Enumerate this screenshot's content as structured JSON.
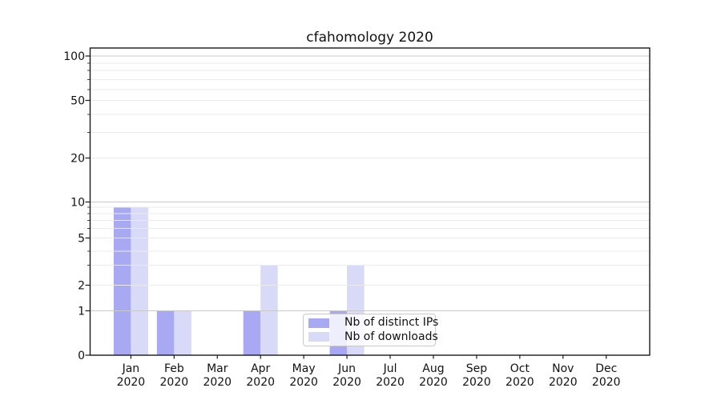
{
  "chart_data": {
    "type": "bar",
    "title": "cfahomology 2020",
    "x": {
      "months": [
        "Jan",
        "Feb",
        "Mar",
        "Apr",
        "May",
        "Jun",
        "Jul",
        "Aug",
        "Sep",
        "Oct",
        "Nov",
        "Dec"
      ],
      "year_line": "2020"
    },
    "y": {
      "scale": "symlog",
      "tick_labels": [
        "0",
        "1",
        "2",
        "5",
        "10",
        "20",
        "50",
        "100"
      ],
      "ylim": [
        0,
        115
      ],
      "grid": true
    },
    "series": [
      {
        "name": "Nb of distinct IPs",
        "color": "#a9a9f3",
        "values": [
          9,
          1,
          0,
          1,
          0,
          1,
          0,
          0,
          0,
          0,
          0,
          0
        ]
      },
      {
        "name": "Nb of downloads",
        "color": "#d9d9f8",
        "values": [
          9,
          1,
          0,
          3,
          0,
          3,
          0,
          0,
          0,
          0,
          0,
          0
        ]
      }
    ],
    "legend_position": "lower center inside plot"
  }
}
